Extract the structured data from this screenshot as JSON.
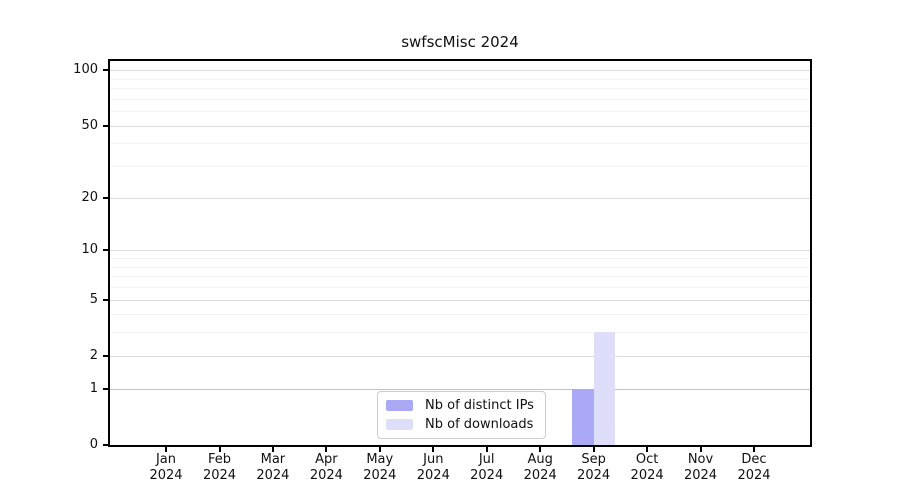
{
  "chart_data": {
    "type": "bar",
    "title": "swfscMisc 2024",
    "categories": [
      "Jan",
      "Feb",
      "Mar",
      "Apr",
      "May",
      "Jun",
      "Jul",
      "Aug",
      "Sep",
      "Oct",
      "Nov",
      "Dec"
    ],
    "category_year": "2024",
    "series": [
      {
        "name": "Nb of distinct IPs",
        "color": "#a9a9f6",
        "values": [
          0,
          0,
          0,
          0,
          0,
          0,
          0,
          0,
          1,
          0,
          0,
          0
        ]
      },
      {
        "name": "Nb of downloads",
        "color": "#dedefb",
        "values": [
          0,
          0,
          0,
          0,
          0,
          0,
          0,
          0,
          3,
          0,
          0,
          0
        ]
      }
    ],
    "y_axis": {
      "scale": "log1p",
      "ticks": [
        0,
        1,
        2,
        5,
        10,
        20,
        50,
        100
      ],
      "minor_ticks": [
        3,
        4,
        6,
        7,
        8,
        9,
        30,
        40,
        60,
        70,
        80,
        90
      ],
      "max": 112
    },
    "x_axis": {
      "tick_count": 12
    },
    "legend_position": "bottom-center",
    "grid": {
      "major_color": "#dcdcdc",
      "minor_color": "#f2f2f2",
      "unit_line_color": "#c2c2c2"
    },
    "colors": {
      "spine": "#000000",
      "background": "#ffffff"
    }
  }
}
